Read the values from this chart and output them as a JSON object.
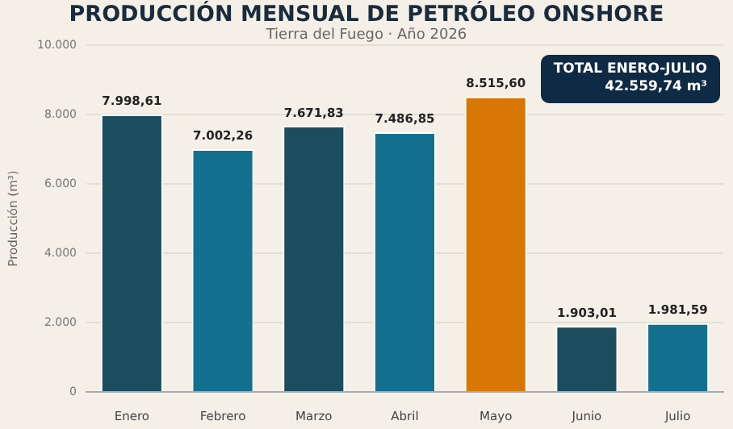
{
  "chart_data": {
    "type": "bar",
    "title": "PRODUCCIÓN MENSUAL DE PETRÓLEO ONSHORE",
    "subtitle": "Tierra del Fuego · Año 2026",
    "ylabel": "Producción (m³)",
    "categories": [
      "Enero",
      "Febrero",
      "Marzo",
      "Abril",
      "Mayo",
      "Junio",
      "Julio"
    ],
    "values": [
      7998.61,
      7002.26,
      7671.83,
      7486.85,
      8515.6,
      1903.01,
      1981.59
    ],
    "colors": [
      "#1b4d5e",
      "#14708f",
      "#1b4d5e",
      "#14708f",
      "#d97706",
      "#1b4d5e",
      "#14708f"
    ],
    "value_labels": [
      "7.998,61",
      "7.002,26",
      "7.671,83",
      "7.486,85",
      "8.515,60",
      "1.903,01",
      "1.981,59"
    ],
    "ylim": [
      0,
      10000
    ],
    "yticks": [
      {
        "value": 0,
        "label": "0"
      },
      {
        "value": 2000,
        "label": "2.000"
      },
      {
        "value": 4000,
        "label": "4.000"
      },
      {
        "value": 6000,
        "label": "6.000"
      },
      {
        "value": 8000,
        "label": "8.000"
      },
      {
        "value": 10000,
        "label": "10.000"
      }
    ],
    "grid": "y",
    "legend": false,
    "annotations": [
      "TOTAL ENERO-JULIO\n42.559,74 m³"
    ]
  }
}
